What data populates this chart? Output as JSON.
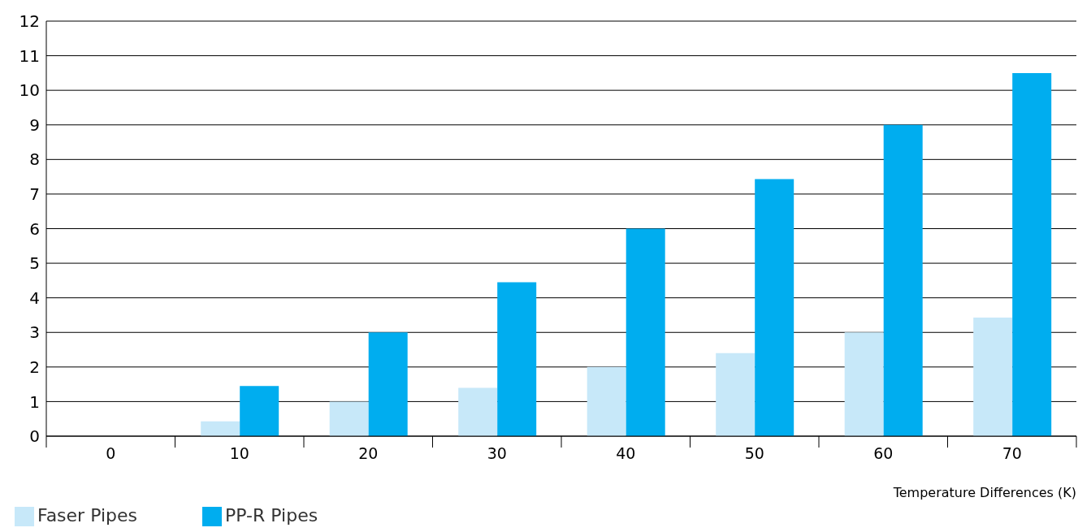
{
  "chart_data": {
    "type": "bar",
    "xlabel": "Temperature Differences (K)",
    "categories": [
      "0",
      "10",
      "20",
      "30",
      "40",
      "50",
      "60",
      "70"
    ],
    "series": [
      {
        "name": "Faser Pipes",
        "color": "#c7e8f9",
        "values": [
          0,
          0.43,
          1.0,
          1.4,
          2.0,
          2.4,
          3.0,
          3.43
        ]
      },
      {
        "name": "PP-R Pipes",
        "color": "#00adef",
        "values": [
          0,
          1.45,
          3.0,
          4.45,
          6.0,
          7.43,
          9.0,
          10.5
        ]
      }
    ],
    "ylim": [
      0,
      12
    ],
    "yticks": [
      0,
      1,
      2,
      3,
      4,
      5,
      6,
      7,
      8,
      9,
      10,
      11,
      12
    ],
    "grid": "y",
    "legend": "bottom left"
  }
}
